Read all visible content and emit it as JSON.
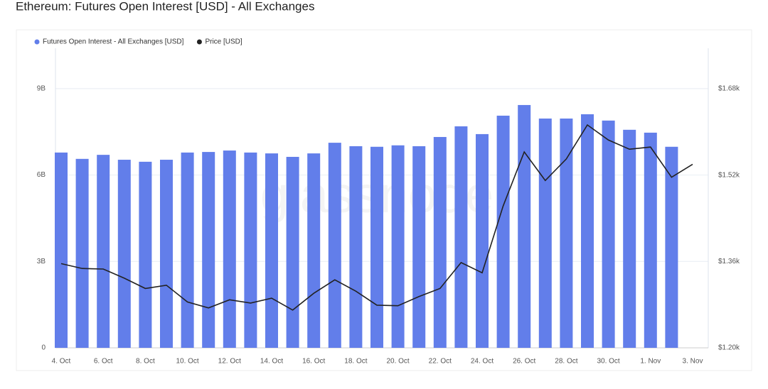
{
  "chart_data": {
    "type": "bar-line",
    "title": "Ethereum: Futures Open Interest [USD] - All Exchanges",
    "watermark": "glassnode",
    "categories": [
      "4. Oct",
      null,
      "6. Oct",
      null,
      "8. Oct",
      null,
      "10. Oct",
      null,
      "12. Oct",
      null,
      "14. Oct",
      null,
      "16. Oct",
      null,
      "18. Oct",
      null,
      "20. Oct",
      null,
      "22. Oct",
      null,
      "24. Oct",
      null,
      "26. Oct",
      null,
      "28. Oct",
      null,
      "30. Oct",
      null,
      "1. Nov",
      null,
      "3. Nov"
    ],
    "series": [
      {
        "name": "Futures Open Interest - All Exchanges [USD]",
        "type": "bar",
        "color": "#627eea",
        "values": [
          6780000000,
          6560000000,
          6700000000,
          6530000000,
          6460000000,
          6530000000,
          6780000000,
          6800000000,
          6850000000,
          6780000000,
          6750000000,
          6630000000,
          6750000000,
          7120000000,
          7000000000,
          6980000000,
          7030000000,
          7000000000,
          7320000000,
          7690000000,
          7420000000,
          8060000000,
          8430000000,
          7960000000,
          7960000000,
          8110000000,
          7890000000,
          7570000000,
          7470000000,
          6980000000,
          null
        ]
      },
      {
        "name": "Price [USD]",
        "type": "line",
        "color": "#222222",
        "axis": "y2",
        "values": [
          1356,
          1347,
          1346,
          1329,
          1310,
          1316,
          1285,
          1274,
          1289,
          1283,
          1292,
          1270,
          1301,
          1326,
          1305,
          1279,
          1278,
          1295,
          1310,
          1358,
          1339,
          1463,
          1563,
          1510,
          1550,
          1613,
          1585,
          1568,
          1572,
          1516,
          1540
        ]
      }
    ],
    "ylim": [
      0,
      10400000000
    ],
    "yticks": [
      {
        "value": 0,
        "label": "0"
      },
      {
        "value": 3000000000,
        "label": "3B"
      },
      {
        "value": 6000000000,
        "label": "6B"
      },
      {
        "value": 9000000000,
        "label": "9B"
      }
    ],
    "y2lim": [
      1200,
      1755
    ],
    "y2ticks": [
      {
        "value": 1200,
        "label": "$1.20k"
      },
      {
        "value": 1360,
        "label": "$1.36k"
      },
      {
        "value": 1520,
        "label": "$1.52k"
      },
      {
        "value": 1680,
        "label": "$1.68k"
      }
    ],
    "grid": true,
    "legend": "top-left"
  }
}
